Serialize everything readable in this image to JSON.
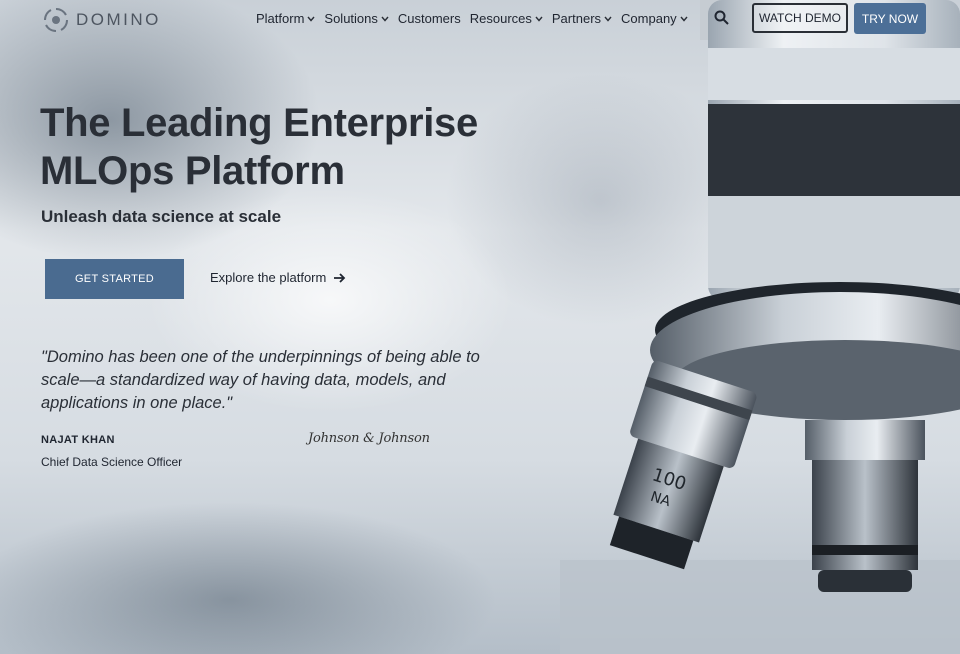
{
  "brand": {
    "name": "DOMINO",
    "accent": "#4c6f97"
  },
  "nav": {
    "items": [
      {
        "label": "Platform",
        "has_dropdown": true
      },
      {
        "label": "Solutions",
        "has_dropdown": true
      },
      {
        "label": "Customers",
        "has_dropdown": false
      },
      {
        "label": "Resources",
        "has_dropdown": true
      },
      {
        "label": "Partners",
        "has_dropdown": true
      },
      {
        "label": "Company",
        "has_dropdown": true
      }
    ],
    "search_icon": "search-icon",
    "watch_demo_label": "WATCH DEMO",
    "try_now_label": "TRY NOW"
  },
  "hero": {
    "headline_line1": "The Leading Enterprise",
    "headline_line2": "MLOps Platform",
    "subheadline": "Unleash data science at scale",
    "cta_primary": "GET STARTED",
    "cta_secondary": "Explore the platform",
    "quote": "\"Domino has been one of the underpinnings of being able to scale—a standardized way of having data, models, and applications in one place.\"",
    "person_name": "NAJAT KHAN",
    "person_title": "Chief Data Science Officer",
    "company_logo_text": "Johnson & Johnson"
  }
}
